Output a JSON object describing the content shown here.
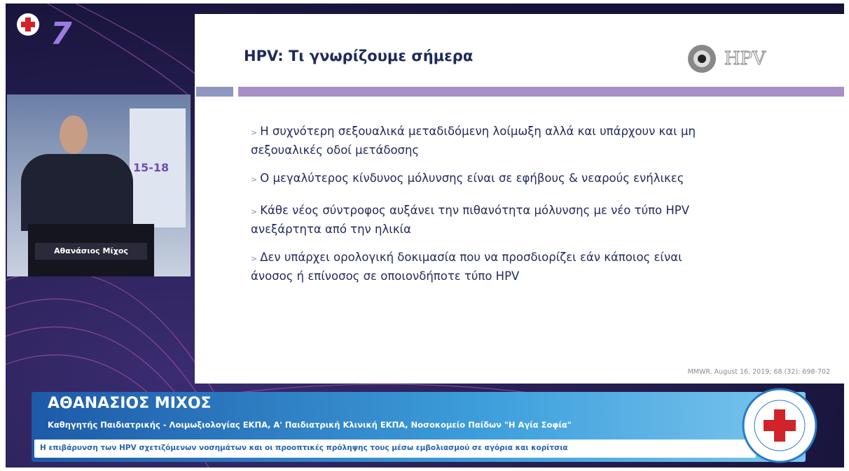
{
  "event": {
    "logo_number": "7"
  },
  "slide": {
    "title": "HPV: Τι γνωρίζουμε σήμερα",
    "logo": "HPV",
    "bullets": [
      [
        "Η συχνότερη σεξουαλικά μεταδιδόμενη λοίμωξη αλλά και υπάρχουν και μη",
        "σεξουαλικές οδοί μετάδοσης"
      ],
      [
        "Ο μεγαλύτερος κίνδυνος μόλυνσης είναι σε εφήβους & νεαρούς ενήλικες"
      ],
      [
        "Κάθε νέος σύντροφος αυξάνει την πιθανότητα μόλυνσης με νέο τύπο HPV",
        "ανεξάρτητα από την ηλικία"
      ],
      [
        "Δεν υπάρχει ορολογική δοκιμασία που να προσδιορίζει εάν κάποιος είναι",
        "άνοσος ή επίνοσος σε οποιονδήποτε τύπο HPV"
      ]
    ],
    "citation": "MMWR. August 16, 2019; 68 (32): 698-702"
  },
  "speaker_video": {
    "name_tag": "Αθανάσιος Μίχος",
    "backdrop_dates": "15-18"
  },
  "lower_third": {
    "name": "ΑΘΑΝΑΣΙΟΣ ΜΙΧΟΣ",
    "role": "Καθηγητής Παιδιατρικής - Λοιμωξιολογίας ΕΚΠΑ, Α' Παιδιατρική Κλινική ΕΚΠΑ, Νοσοκομείο Παίδων \"Η Αγία Σοφία\"",
    "talk_title": "Η επιβάρυνση των HPV σχετιζόμενων νοσημάτων και οι προοπτικές πρόληψης τους μέσω εμβολιασμού σε αγόρια και κορίτσια"
  }
}
